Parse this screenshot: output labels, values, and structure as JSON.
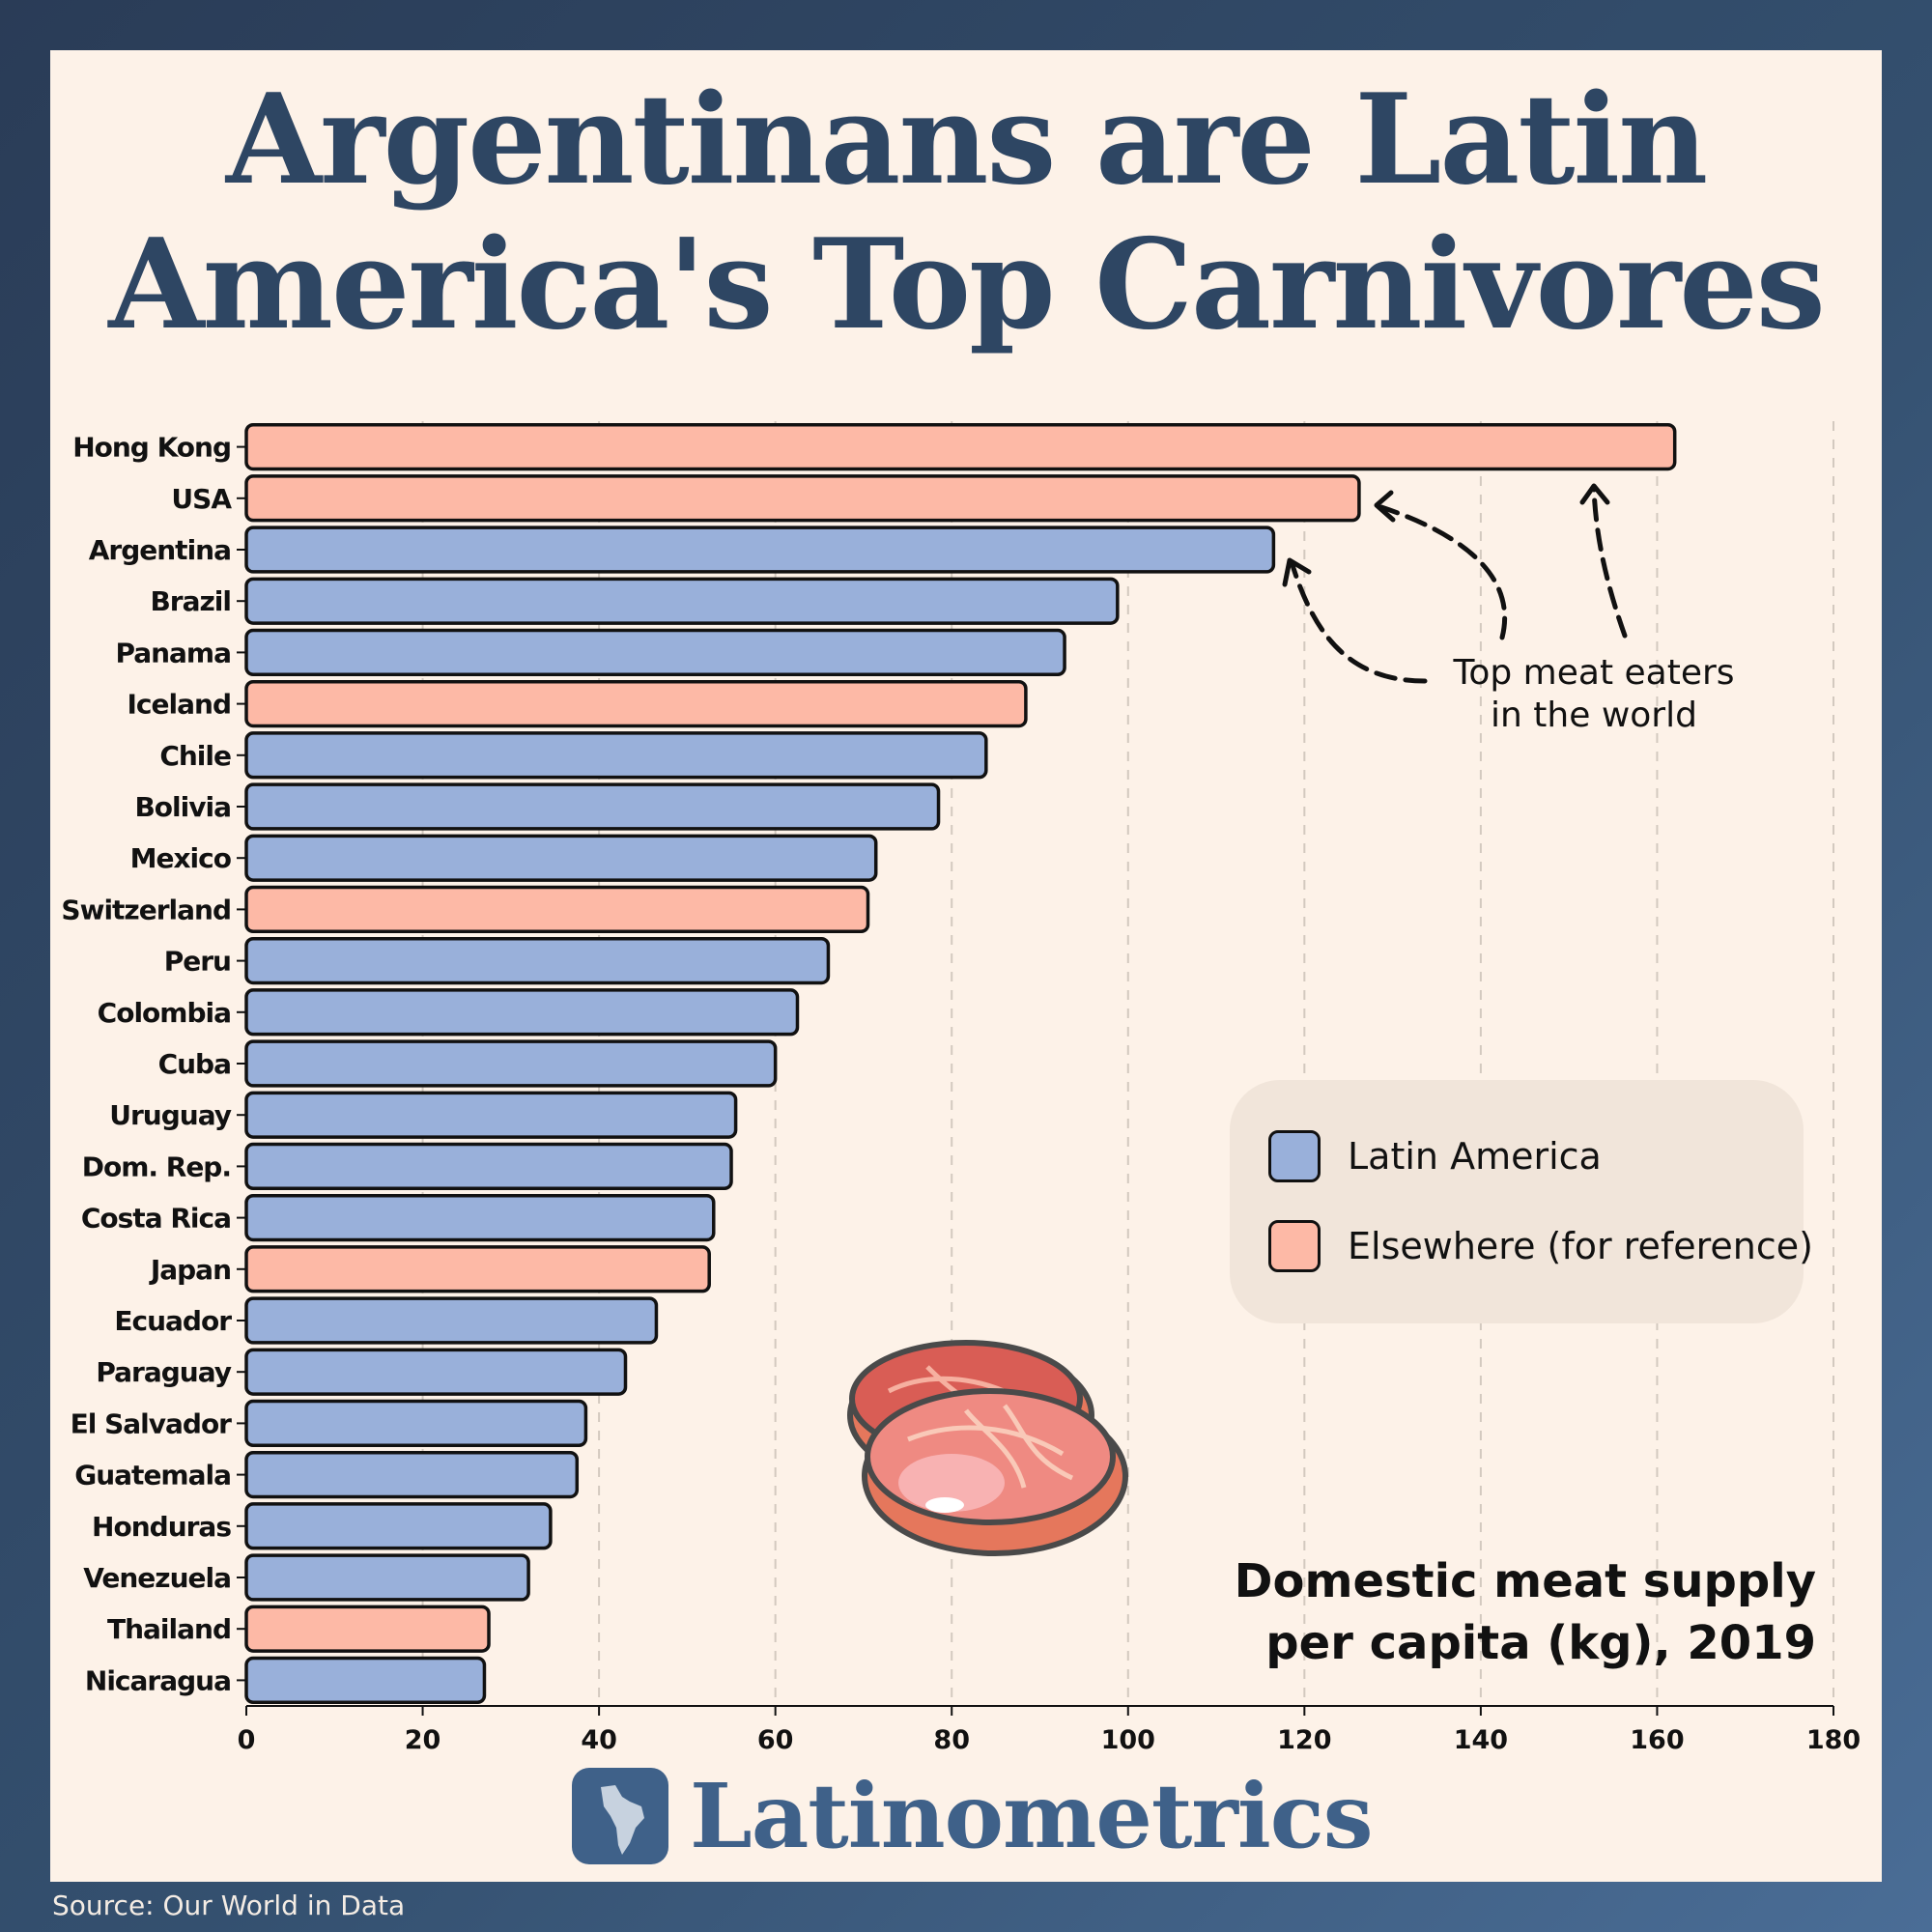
{
  "title": {
    "line1": "Argentinans are Latin",
    "line2": "America's Top Carnivores"
  },
  "subtitle": {
    "line1": "Domestic meat supply",
    "line2": "per capita (kg), 2019"
  },
  "annotation": {
    "line1": "Top meat eaters",
    "line2": "in the world"
  },
  "legend": {
    "latin": "Latin America",
    "elsewhere": "Elsewhere (for reference)"
  },
  "brand": {
    "name": "Latinometrics"
  },
  "source": "Source: Our World in Data",
  "colors": {
    "latin": "#99b0da",
    "elsewhere": "#fdb9a6",
    "text_dark": "#2e4663",
    "brand": "#3f6189"
  },
  "icons": {
    "meat": "steak-illustration-icon",
    "brand": "latin-america-map-icon"
  },
  "chart_data": {
    "type": "bar",
    "orientation": "horizontal",
    "categories": [
      "Hong Kong",
      "USA",
      "Argentina",
      "Brazil",
      "Panama",
      "Iceland",
      "Chile",
      "Bolivia",
      "Mexico",
      "Switzerland",
      "Peru",
      "Colombia",
      "Cuba",
      "Uruguay",
      "Dom. Rep.",
      "Costa Rica",
      "Japan",
      "Ecuador",
      "Paraguay",
      "El Salvador",
      "Guatemala",
      "Honduras",
      "Venezuela",
      "Thailand",
      "Nicaragua"
    ],
    "values": [
      162,
      126.2,
      116.5,
      98.8,
      92.8,
      88.4,
      83.9,
      78.5,
      71.4,
      70.5,
      66,
      62.5,
      60,
      55.5,
      55,
      53,
      52.5,
      46.5,
      43,
      38.5,
      37.5,
      34.5,
      32,
      27.5,
      27
    ],
    "groups": [
      "Elsewhere",
      "Elsewhere",
      "Latin America",
      "Latin America",
      "Latin America",
      "Elsewhere",
      "Latin America",
      "Latin America",
      "Latin America",
      "Elsewhere",
      "Latin America",
      "Latin America",
      "Latin America",
      "Latin America",
      "Latin America",
      "Latin America",
      "Elsewhere",
      "Latin America",
      "Latin America",
      "Latin America",
      "Latin America",
      "Latin America",
      "Latin America",
      "Elsewhere",
      "Latin America"
    ],
    "xlim": [
      0,
      180
    ],
    "xticks": [
      0,
      20,
      40,
      60,
      80,
      100,
      120,
      140,
      160,
      180
    ],
    "grid": "vertical dashed",
    "legend_position": "middle-right"
  }
}
